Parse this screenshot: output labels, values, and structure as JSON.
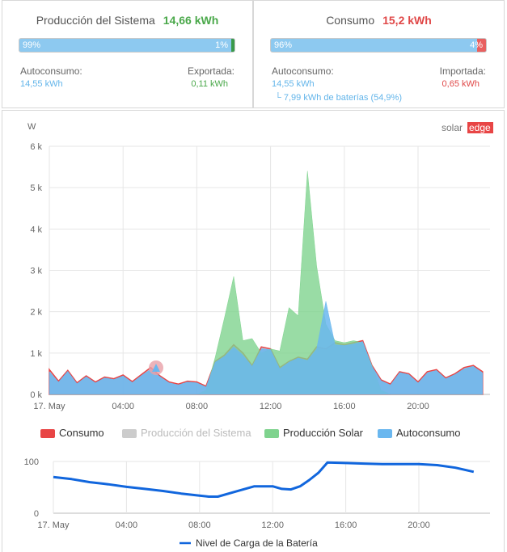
{
  "production": {
    "title": "Producción del Sistema",
    "value": "14,66 kWh",
    "bar_left_pct": "99%",
    "bar_right_pct": "1%",
    "self_label": "Autoconsumo:",
    "self_value": "14,55 kWh",
    "export_label": "Exportada:",
    "export_value": "0,11 kWh",
    "fraction_self": 0.99
  },
  "consumption": {
    "title": "Consumo",
    "value": "15,2 kWh",
    "bar_left_pct": "96%",
    "bar_right_pct": "4%",
    "self_label": "Autoconsumo:",
    "self_value": "14,55 kWh",
    "battery_note": "└ 7,99 kWh de baterías (54,9%)",
    "import_label": "Importada:",
    "import_value": "0,65 kWh",
    "fraction_self": 0.96
  },
  "colors": {
    "green_text": "#4aa84a",
    "red_text": "#e04848",
    "blue_text": "#63b5ea",
    "consumo": "#e84545",
    "produccion_sistema": "#cccccc",
    "produccion_solar": "#7fd38e",
    "autoconsumo": "#6ab7ef",
    "bateria": "#1166dd"
  },
  "logo": {
    "solar": "solar",
    "edge": "edge"
  },
  "legend": {
    "consumo": "Consumo",
    "produccion_sistema": "Producción del Sistema",
    "produccion_solar": "Producción Solar",
    "autoconsumo": "Autoconsumo"
  },
  "chart_data": [
    {
      "type": "area",
      "ylabel": "W",
      "ylim": [
        0,
        6000
      ],
      "y_ticks": [
        "0 k",
        "1 k",
        "2 k",
        "3 k",
        "4 k",
        "5 k",
        "6 k"
      ],
      "x_ticks": [
        "17. May",
        "04:00",
        "08:00",
        "12:00",
        "16:00",
        "20:00"
      ],
      "x_hours": [
        0,
        0.5,
        1,
        1.5,
        2,
        2.5,
        3,
        3.5,
        4,
        4.5,
        5,
        5.5,
        6,
        6.5,
        7,
        7.5,
        8,
        8.5,
        9,
        9.5,
        10,
        10.5,
        11,
        11.5,
        12,
        12.5,
        13,
        13.5,
        14,
        14.5,
        15,
        15.5,
        16,
        16.5,
        17,
        17.5,
        18,
        18.5,
        19,
        19.5,
        20,
        20.5,
        21,
        21.5,
        22,
        22.5,
        23,
        23.5
      ],
      "series": [
        {
          "name": "Consumo",
          "values": [
            600,
            320,
            580,
            280,
            450,
            300,
            420,
            380,
            470,
            310,
            480,
            650,
            450,
            300,
            250,
            320,
            300,
            200,
            800,
            950,
            1200,
            1000,
            700,
            1150,
            1100,
            650,
            800,
            900,
            850,
            1150,
            1100,
            1250,
            1200,
            1250,
            1300,
            700,
            350,
            250,
            550,
            500,
            300,
            550,
            600,
            400,
            500,
            650,
            700,
            550
          ]
        },
        {
          "name": "Producción Solar",
          "values": [
            0,
            0,
            0,
            0,
            0,
            0,
            0,
            0,
            0,
            0,
            0,
            0,
            0,
            0,
            0,
            0,
            0,
            100,
            900,
            1850,
            2850,
            1300,
            1350,
            1000,
            1100,
            1050,
            2100,
            1900,
            5400,
            3100,
            1700,
            1300,
            1250,
            1300,
            1250,
            700,
            100,
            0,
            0,
            0,
            0,
            0,
            0,
            0,
            0,
            0,
            0,
            0
          ]
        },
        {
          "name": "Autoconsumo",
          "values": [
            550,
            300,
            560,
            260,
            430,
            280,
            400,
            360,
            450,
            290,
            460,
            600,
            430,
            280,
            230,
            300,
            280,
            180,
            780,
            920,
            1150,
            950,
            680,
            1100,
            1080,
            620,
            780,
            880,
            820,
            1100,
            2250,
            1200,
            1180,
            1220,
            1280,
            680,
            330,
            230,
            530,
            480,
            280,
            520,
            580,
            380,
            480,
            620,
            680,
            520
          ]
        }
      ]
    },
    {
      "type": "line",
      "ylim": [
        0,
        100
      ],
      "y_ticks": [
        "0",
        "100"
      ],
      "x_ticks": [
        "17. May",
        "04:00",
        "08:00",
        "12:00",
        "16:00",
        "20:00"
      ],
      "x_hours": [
        0,
        1,
        2,
        3,
        4,
        5,
        6,
        7,
        8,
        8.5,
        9,
        10,
        11,
        12,
        12.5,
        13,
        13.5,
        14,
        14.5,
        15,
        16,
        17,
        18,
        19,
        20,
        21,
        22,
        23
      ],
      "series": [
        {
          "name": "Nivel de Carga de la Batería",
          "values": [
            70,
            66,
            60,
            56,
            51,
            47,
            43,
            38,
            34,
            32,
            32,
            42,
            52,
            52,
            47,
            46,
            52,
            64,
            78,
            98,
            97,
            96,
            95,
            95,
            95,
            93,
            88,
            80
          ]
        }
      ]
    }
  ],
  "battery_legend": "Nivel de Carga de la Batería"
}
